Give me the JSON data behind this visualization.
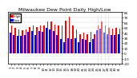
{
  "title": "Milwaukee Dew Point Daily High/Low",
  "bar_color_high": "#FF0000",
  "bar_color_low": "#0000FF",
  "background_color": "#FFFFFF",
  "plot_bg_color": "#FFFFFF",
  "ylim": [
    -20,
    80
  ],
  "yticks": [
    -20,
    -10,
    0,
    10,
    20,
    30,
    40,
    50,
    60,
    70,
    80
  ],
  "days": [
    "1",
    "2",
    "3",
    "4",
    "5",
    "6",
    "7",
    "8",
    "9",
    "10",
    "11",
    "12",
    "13",
    "14",
    "15",
    "16",
    "17",
    "18",
    "19",
    "20",
    "21",
    "22",
    "23",
    "24",
    "25",
    "26",
    "27",
    "28",
    "29",
    "30",
    "31"
  ],
  "highs": [
    55,
    50,
    47,
    45,
    46,
    52,
    54,
    52,
    55,
    55,
    62,
    62,
    56,
    54,
    55,
    63,
    72,
    55,
    47,
    38,
    40,
    37,
    42,
    38,
    55,
    62,
    55,
    50,
    48,
    50,
    48
  ],
  "lows": [
    40,
    36,
    35,
    34,
    36,
    42,
    44,
    36,
    44,
    42,
    50,
    46,
    44,
    36,
    28,
    22,
    30,
    28,
    30,
    22,
    28,
    26,
    22,
    28,
    45,
    48,
    40,
    38,
    36,
    36,
    38
  ],
  "dashed_indices": [
    24,
    25,
    26,
    27
  ],
  "legend_high": "High",
  "legend_low": "Low",
  "title_fontsize": 4.5,
  "tick_fontsize": 2.8,
  "ytick_fontsize": 3.0
}
